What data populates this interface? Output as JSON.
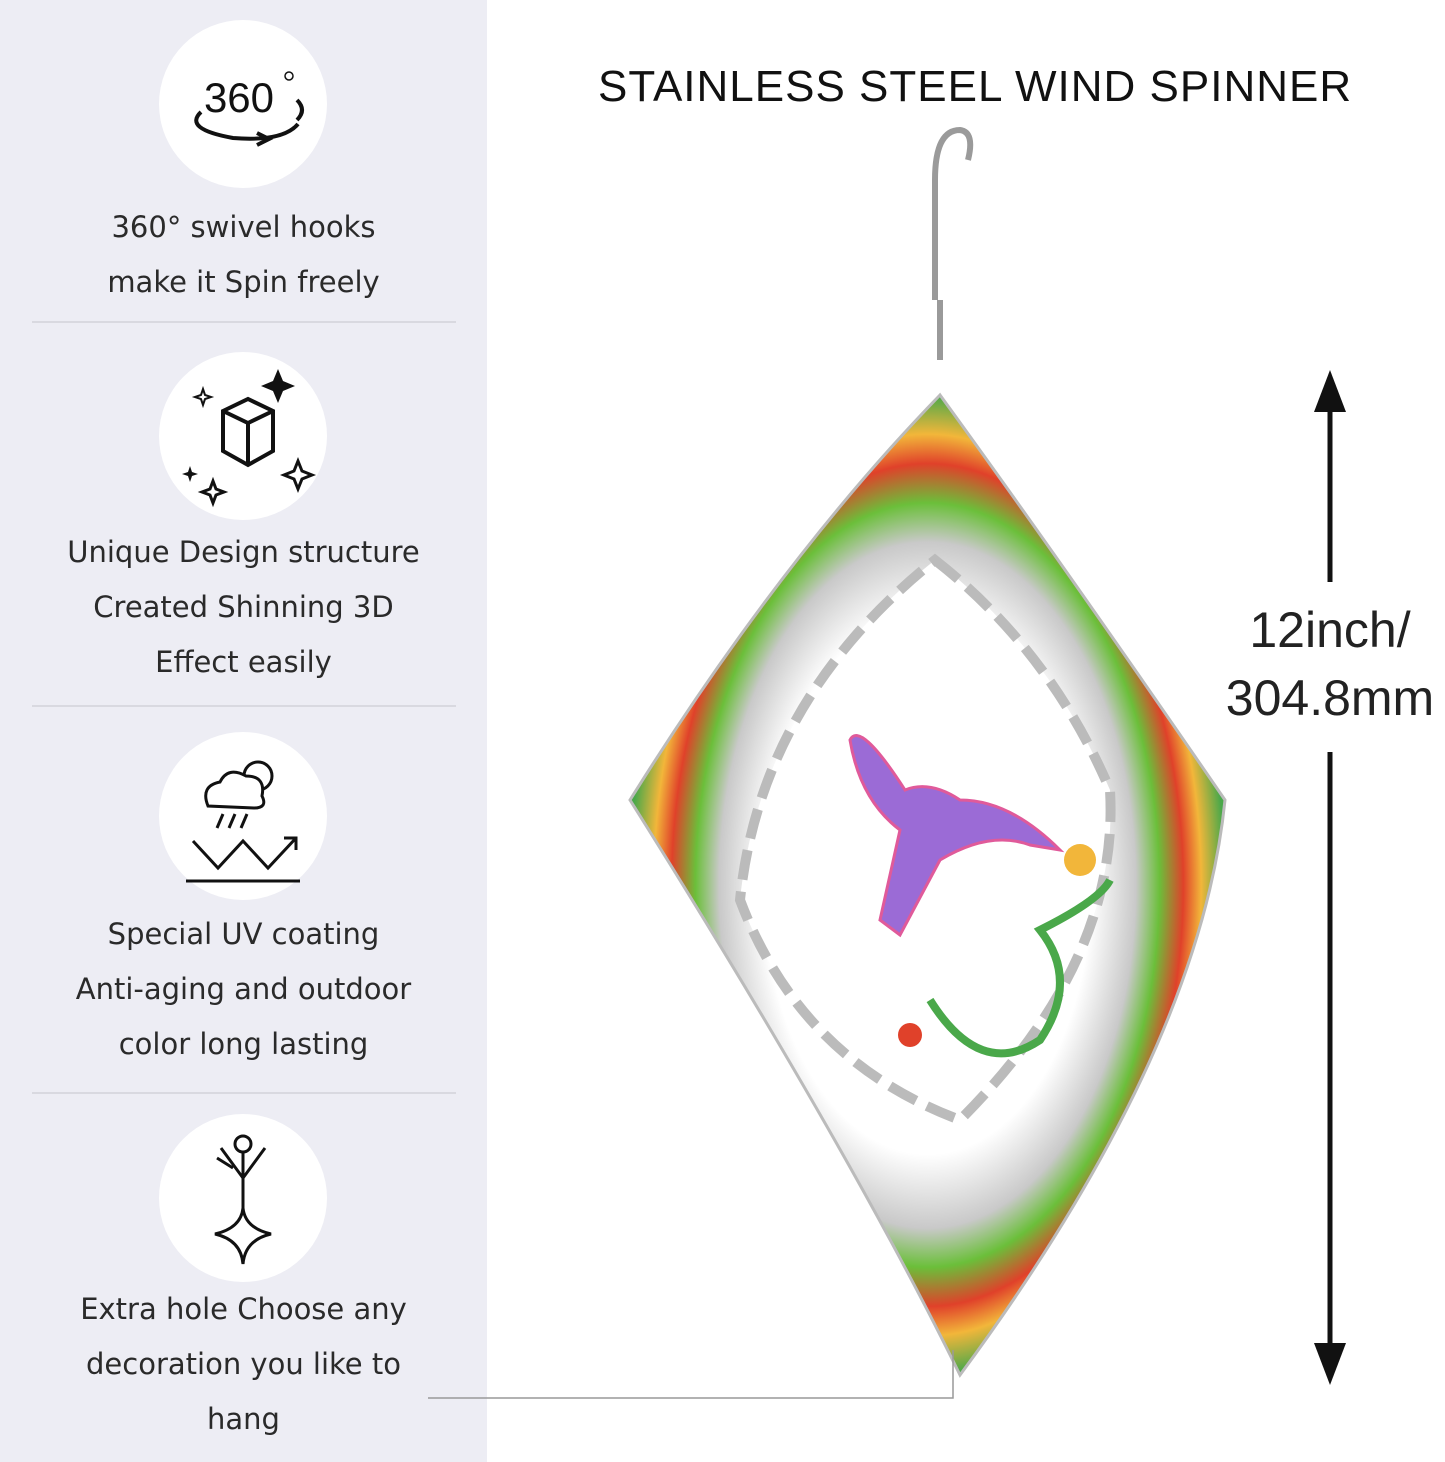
{
  "title": "STAINLESS STEEL WIND SPINNER",
  "features": [
    {
      "icon": "rotate-360-icon",
      "badge": "360",
      "lines": [
        "360° swivel hooks",
        "make it Spin freely"
      ]
    },
    {
      "icon": "3d-cube-sparkle-icon",
      "lines": [
        "Unique Design structure",
        "Created Shinning 3D",
        "Effect easily"
      ]
    },
    {
      "icon": "weather-resistant-icon",
      "lines": [
        "Special UV coating",
        "Anti-aging and outdoor",
        "color long lasting"
      ]
    },
    {
      "icon": "hanging-decoration-icon",
      "lines": [
        "Extra hole Choose any",
        "decoration you like to",
        "hang"
      ]
    }
  ],
  "dimension": {
    "line1": "12inch/",
    "line2": "304.8mm"
  },
  "colors": {
    "panel": "#ededf4",
    "accent_green": "#6bbf3a",
    "accent_red": "#e0412a"
  }
}
